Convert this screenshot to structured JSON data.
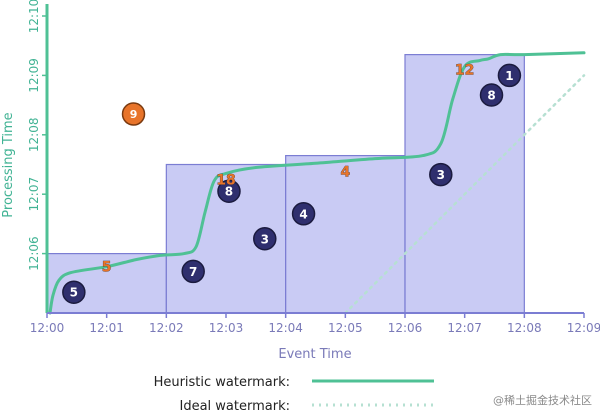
{
  "chart_data": {
    "type": "diagram",
    "y_axis": {
      "label": "Processing Time",
      "ticks": [
        "12:10",
        "12:09",
        "12:08",
        "12:07",
        "12:06"
      ],
      "tick_values_min": [
        10,
        9,
        8,
        7,
        6
      ],
      "range_min": [
        5,
        10
      ]
    },
    "x_axis": {
      "label": "Event Time",
      "ticks": [
        "12:00",
        "12:01",
        "12:02",
        "12:03",
        "12:04",
        "12:05",
        "12:06",
        "12:07",
        "12:08",
        "12:09"
      ],
      "range_min": [
        0,
        9
      ]
    },
    "windows": [
      {
        "x_start": 0,
        "x_end": 2,
        "top": 6.0
      },
      {
        "x_start": 2,
        "x_end": 4,
        "top": 7.5
      },
      {
        "x_start": 4,
        "x_end": 6,
        "top": 7.65
      },
      {
        "x_start": 6,
        "x_end": 8,
        "top": 9.35
      }
    ],
    "heuristic_watermark": [
      [
        0.05,
        5.0
      ],
      [
        0.1,
        5.3
      ],
      [
        0.2,
        5.55
      ],
      [
        0.4,
        5.68
      ],
      [
        1.0,
        5.78
      ],
      [
        1.5,
        5.9
      ],
      [
        1.9,
        5.97
      ],
      [
        2.3,
        6.0
      ],
      [
        2.5,
        6.12
      ],
      [
        2.65,
        6.7
      ],
      [
        2.8,
        7.22
      ],
      [
        3.0,
        7.35
      ],
      [
        3.5,
        7.45
      ],
      [
        4.5,
        7.52
      ],
      [
        5.5,
        7.6
      ],
      [
        6.3,
        7.65
      ],
      [
        6.6,
        7.85
      ],
      [
        6.8,
        8.6
      ],
      [
        7.0,
        9.15
      ],
      [
        7.25,
        9.25
      ],
      [
        7.4,
        9.28
      ],
      [
        7.6,
        9.35
      ],
      [
        8.0,
        9.35
      ],
      [
        9.0,
        9.38
      ]
    ],
    "ideal_watermark": [
      [
        5.0,
        5.0
      ],
      [
        9.0,
        9.0
      ]
    ],
    "late_points": [
      {
        "label": "9",
        "x": 1.45,
        "y": 8.35
      }
    ],
    "data_points": [
      {
        "label": "5",
        "x": 0.45,
        "y": 5.35
      },
      {
        "label": "7",
        "x": 2.45,
        "y": 5.7
      },
      {
        "label": "8",
        "x": 3.05,
        "y": 7.05
      },
      {
        "label": "3",
        "x": 3.65,
        "y": 6.25
      },
      {
        "label": "4",
        "x": 4.3,
        "y": 6.67
      },
      {
        "label": "3",
        "x": 6.6,
        "y": 7.33
      },
      {
        "label": "8",
        "x": 7.45,
        "y": 8.67
      },
      {
        "label": "1",
        "x": 7.75,
        "y": 9.0
      }
    ],
    "window_results": [
      {
        "label": "5",
        "x": 1.0,
        "y": 5.78
      },
      {
        "label": "18",
        "x": 3.0,
        "y": 7.25
      },
      {
        "label": "4",
        "x": 5.0,
        "y": 7.38
      },
      {
        "label": "12",
        "x": 7.0,
        "y": 9.1
      }
    ],
    "colors": {
      "heuristic": "#4fc195",
      "ideal": "#b6e0d2",
      "window_fill": "#c0c2f2",
      "window_stroke": "#7b7dd3",
      "point_fill": "#2f2f6e",
      "late_fill": "#e8742a",
      "result_text": "#e8742a"
    }
  },
  "legend": {
    "heuristic_label": "Heuristic watermark:",
    "ideal_label": "Ideal watermark:"
  },
  "watermark_text": "@稀土掘金技术社区"
}
